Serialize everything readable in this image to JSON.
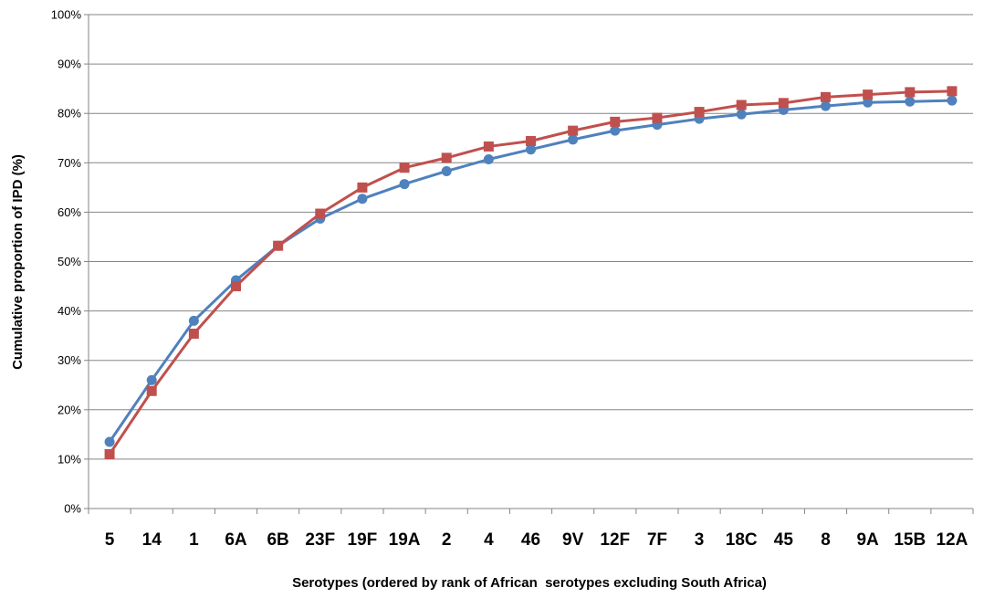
{
  "chart_data": {
    "type": "line",
    "title": "",
    "xlabel": "Serotypes (ordered by rank of African  serotypes excluding South Africa)",
    "ylabel": "Cumulative proportion of IPD (%)",
    "ylim": [
      0,
      100
    ],
    "yticks": [
      "0%",
      "10%",
      "20%",
      "30%",
      "40%",
      "50%",
      "60%",
      "70%",
      "80%",
      "90%",
      "100%"
    ],
    "grid": true,
    "legend": "none",
    "categories": [
      "5",
      "14",
      "1",
      "6A",
      "6B",
      "23F",
      "19F",
      "19A",
      "2",
      "4",
      "46",
      "9V",
      "12F",
      "7F",
      "3",
      "18C",
      "45",
      "8",
      "9A",
      "15B",
      "12A"
    ],
    "series": [
      {
        "color": "#4f81bd",
        "marker": "circle",
        "values": [
          13.5,
          26.0,
          38.0,
          46.2,
          53.2,
          58.7,
          62.7,
          65.7,
          68.3,
          70.7,
          72.7,
          74.7,
          76.5,
          77.7,
          78.9,
          79.8,
          80.7,
          81.5,
          82.2,
          82.4,
          82.6
        ]
      },
      {
        "color": "#c0504d",
        "marker": "square",
        "values": [
          11.0,
          23.8,
          35.4,
          45.0,
          53.2,
          59.7,
          65.0,
          69.0,
          71.0,
          73.3,
          74.4,
          76.5,
          78.3,
          79.1,
          80.3,
          81.7,
          82.1,
          83.3,
          83.8,
          84.3,
          84.5
        ]
      }
    ]
  }
}
